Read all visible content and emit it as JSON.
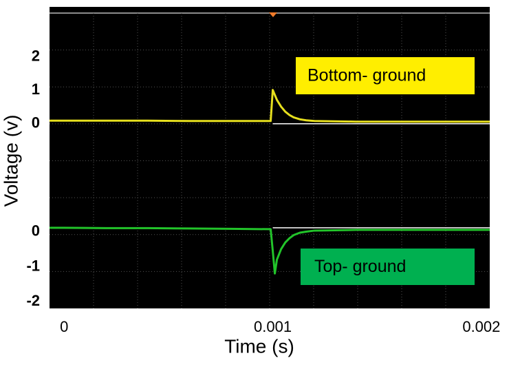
{
  "chart_data": [
    {
      "type": "line",
      "ylabel": "Voltage (v)",
      "x": [
        -7e-05,
        0,
        0.0002,
        0.0004,
        0.0006,
        0.0008,
        0.00099,
        0.001,
        0.00101,
        0.00102,
        0.00104,
        0.00106,
        0.00108,
        0.0011,
        0.00113,
        0.00116,
        0.0012,
        0.0014,
        0.0016,
        0.0018,
        0.002,
        0.00204
      ],
      "series": [
        {
          "name": "Bottom- ground",
          "color": "#e6df1e",
          "label_color": "#ffee00",
          "values": [
            0.03,
            0.03,
            0.03,
            0.03,
            0.02,
            0.02,
            0.02,
            0.95,
            0.8,
            0.65,
            0.45,
            0.3,
            0.2,
            0.13,
            0.07,
            0.04,
            0.02,
            0.0,
            0.0,
            0.0,
            0.0,
            0.0
          ]
        }
      ],
      "xlim": [
        -7e-05,
        0.00204
      ],
      "ylim": [
        -1.1,
        3.4
      ],
      "yticks": [
        0,
        1,
        2
      ]
    },
    {
      "type": "line",
      "xlabel": "Time (s)",
      "x": [
        -7e-05,
        0,
        0.0002,
        0.0004,
        0.0006,
        0.0008,
        0.00099,
        0.001,
        0.00101,
        0.00102,
        0.00104,
        0.00106,
        0.00108,
        0.0011,
        0.00113,
        0.00116,
        0.0012,
        0.0014,
        0.0016,
        0.0018,
        0.002,
        0.00204
      ],
      "series": [
        {
          "name": "Top- ground",
          "color": "#22c42a",
          "label_color": "#00b050",
          "values": [
            0.06,
            0.06,
            0.05,
            0.05,
            0.04,
            0.03,
            0.02,
            -0.6,
            -1.25,
            -0.85,
            -0.55,
            -0.36,
            -0.24,
            -0.15,
            -0.08,
            -0.05,
            -0.02,
            0.0,
            0.0,
            0.0,
            0.0,
            0.0
          ]
        }
      ],
      "xlim": [
        -7e-05,
        0.00204
      ],
      "xticks": [
        0,
        0.001,
        0.002
      ],
      "ylim": [
        -2.25,
        2.05
      ],
      "yticks": [
        0,
        -1,
        -2
      ]
    }
  ]
}
